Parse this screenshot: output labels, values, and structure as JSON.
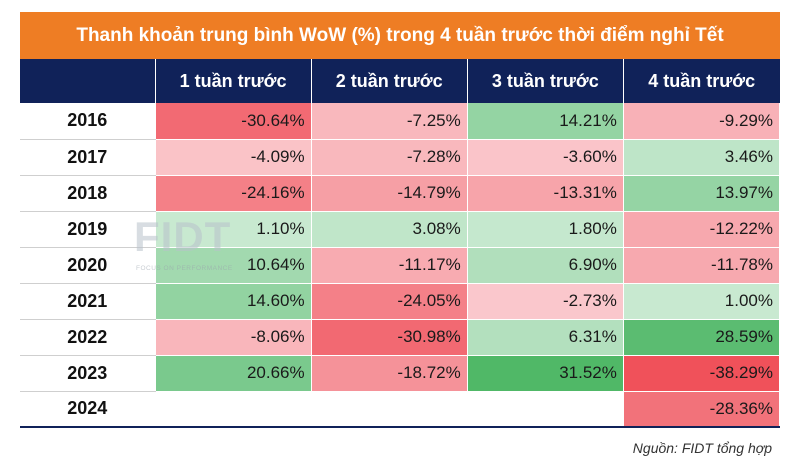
{
  "title": "Thanh khoản trung bình WoW (%) trong 4 tuần trước thời điểm nghỉ Tết",
  "watermark": {
    "logo": "FIDT",
    "tagline": "FOCUS ON PERFORMANCE"
  },
  "source": "Nguồn: FIDT tổng hợp",
  "colors": {
    "title_bg": "#ee7d24",
    "header_bg": "#102259",
    "positive": "#2eaa4a",
    "negative": "#ef4b55"
  },
  "chart_data": {
    "type": "table",
    "title": "Thanh khoản trung bình WoW (%) trong 4 tuần trước thời điểm nghỉ Tết",
    "columns": [
      "1 tuần trước",
      "2 tuần trước",
      "3 tuần trước",
      "4 tuần trước"
    ],
    "rows": [
      {
        "year": "2016",
        "values": [
          -30.64,
          -7.25,
          14.21,
          -9.29
        ],
        "labels": [
          "-30.64%",
          "-7.25%",
          "14.21%",
          "-9.29%"
        ]
      },
      {
        "year": "2017",
        "values": [
          -4.09,
          -7.28,
          -3.6,
          3.46
        ],
        "labels": [
          "-4.09%",
          "-7.28%",
          "-3.60%",
          "3.46%"
        ]
      },
      {
        "year": "2018",
        "values": [
          -24.16,
          -14.79,
          -13.31,
          13.97
        ],
        "labels": [
          "-24.16%",
          "-14.79%",
          "-13.31%",
          "13.97%"
        ]
      },
      {
        "year": "2019",
        "values": [
          1.1,
          3.08,
          1.8,
          -12.22
        ],
        "labels": [
          "1.10%",
          "3.08%",
          "1.80%",
          "-12.22%"
        ]
      },
      {
        "year": "2020",
        "values": [
          10.64,
          -11.17,
          6.9,
          -11.78
        ],
        "labels": [
          "10.64%",
          "-11.17%",
          "6.90%",
          "-11.78%"
        ]
      },
      {
        "year": "2021",
        "values": [
          14.6,
          -24.05,
          -2.73,
          1.0
        ],
        "labels": [
          "14.60%",
          "-24.05%",
          "-2.73%",
          "1.00%"
        ]
      },
      {
        "year": "2022",
        "values": [
          -8.06,
          -30.98,
          6.31,
          28.59
        ],
        "labels": [
          "-8.06%",
          "-30.98%",
          "6.31%",
          "28.59%"
        ]
      },
      {
        "year": "2023",
        "values": [
          20.66,
          -18.72,
          31.52,
          -38.29
        ],
        "labels": [
          "20.66%",
          "-18.72%",
          "31.52%",
          "-38.29%"
        ]
      },
      {
        "year": "2024",
        "values": [
          null,
          null,
          null,
          -28.36
        ],
        "labels": [
          "",
          "",
          "",
          "-28.36%"
        ]
      }
    ]
  }
}
